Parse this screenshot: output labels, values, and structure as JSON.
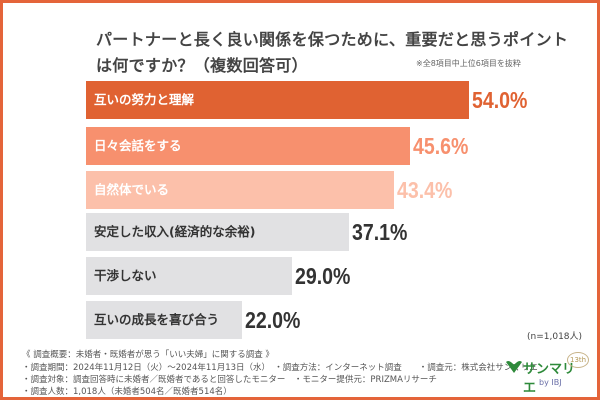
{
  "title_line1": "パートナーと長く良い関係を保つために、重要だと思うポイント",
  "title_line2": "は何ですか？（複数回答可）",
  "note": "※全8項目中上位6項目を抜粋",
  "sample_size": "(n=1,018人)",
  "footer": [
    "《 調査概要：未婚者・既婚者が思う「いい夫婦」に関する調査 》",
    "・調査期間：2024年11月12日（火）～2024年11月13日（水）　・調査方法：インターネット調査　　・調査元：株式会社サンマリエ",
    "・調査対象：調査回答時に未婚者／既婚者であると回答したモニター　・モニター提供元：PRIZMAリサーチ",
    "・調査人数：1,018人（未婚者504名／既婚者514名）"
  ],
  "logo": {
    "brand": "サンマリエ",
    "sub": "by IBJ",
    "badge": "13th"
  },
  "colors": {
    "border": "#e4643a",
    "bar1": "#e06232",
    "bar2": "#f7906e",
    "bar3": "#fcc0aa",
    "gray": "#e1e1e3"
  },
  "chart_data": {
    "type": "bar",
    "orientation": "horizontal",
    "title": "パートナーと長く良い関係を保つために、重要だと思うポイントは何ですか？（複数回答可）",
    "categories": [
      "互いの努力と理解",
      "日々会話をする",
      "自然体でいる",
      "安定した収入(経済的な余裕)",
      "干渉しない",
      "互いの成長を喜び合う"
    ],
    "values": [
      54.0,
      45.6,
      43.4,
      37.1,
      29.0,
      22.0
    ],
    "value_labels": [
      "54.0%",
      "45.6%",
      "43.4%",
      "37.1%",
      "29.0%",
      "22.0%"
    ],
    "unit": "%",
    "grid": false
  }
}
